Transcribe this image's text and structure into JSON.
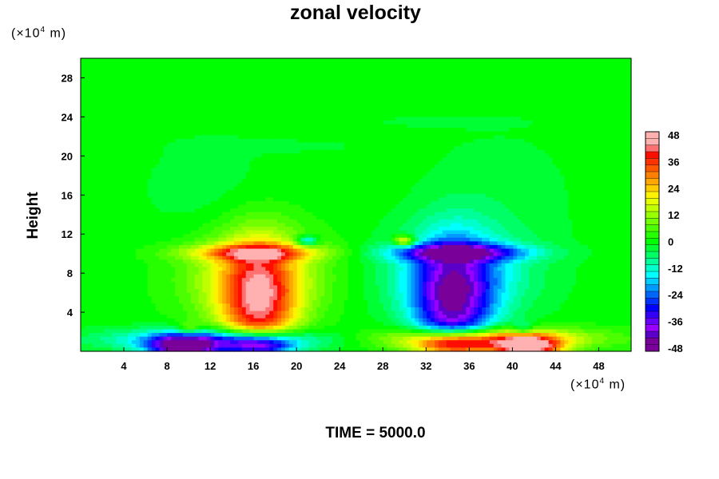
{
  "chart_data": {
    "type": "heatmap",
    "title": "zonal velocity",
    "ylabel": "Height",
    "x_unit": "(×10",
    "x_unit_exp": "4",
    "x_unit_suffix": " m)",
    "y_unit": "(×10",
    "y_unit_exp": "4",
    "y_unit_suffix": " m)",
    "xlim": [
      0,
      51
    ],
    "ylim": [
      0,
      30
    ],
    "x_ticks": [
      4,
      8,
      12,
      16,
      20,
      24,
      28,
      32,
      36,
      40,
      44,
      48
    ],
    "y_ticks": [
      4,
      8,
      12,
      16,
      20,
      24,
      28
    ],
    "colorbar": {
      "min": -48,
      "max": 48,
      "step": 3,
      "ticks": [
        -48,
        -36,
        -24,
        -12,
        0,
        12,
        24,
        36,
        48
      ]
    },
    "features": [
      {
        "x": 16.5,
        "y": 4.5,
        "value": 36,
        "sx": 2.6,
        "sy": 4.8
      },
      {
        "x": 16.0,
        "y": 7.8,
        "value": 16,
        "sx": 4.8,
        "sy": 3.2
      },
      {
        "x": 34.5,
        "y": 4.5,
        "value": -36,
        "sx": 2.6,
        "sy": 4.8
      },
      {
        "x": 35.0,
        "y": 7.8,
        "value": -16,
        "sx": 4.8,
        "sy": 3.2
      },
      {
        "x": 16.0,
        "y": 10.1,
        "value": 24,
        "sx": 4.5,
        "sy": 0.6
      },
      {
        "x": 35.0,
        "y": 10.1,
        "value": -30,
        "sx": 4.5,
        "sy": 0.6
      },
      {
        "x": 21.0,
        "y": 11.3,
        "value": -22,
        "sx": 0.7,
        "sy": 0.4
      },
      {
        "x": 30.0,
        "y": 11.3,
        "value": 26,
        "sx": 0.7,
        "sy": 0.4
      },
      {
        "x": 9.5,
        "y": 0.4,
        "value": -44,
        "sx": 2.2,
        "sy": 0.8
      },
      {
        "x": 16.5,
        "y": 0.4,
        "value": -50,
        "sx": 2.4,
        "sy": 0.9
      },
      {
        "x": 13.0,
        "y": 1.2,
        "value": -26,
        "sx": 7.0,
        "sy": 0.8
      },
      {
        "x": 34.5,
        "y": 0.5,
        "value": 50,
        "sx": 2.6,
        "sy": 0.9
      },
      {
        "x": 41.5,
        "y": 0.4,
        "value": 44,
        "sx": 2.2,
        "sy": 0.8
      },
      {
        "x": 37.5,
        "y": 1.3,
        "value": 28,
        "sx": 7.0,
        "sy": 0.8
      },
      {
        "x": 10.0,
        "y": 2.3,
        "value": 12,
        "sx": 0.7,
        "sy": 0.5
      },
      {
        "x": 41.0,
        "y": 2.3,
        "value": -12,
        "sx": 0.7,
        "sy": 0.5
      },
      {
        "x": 12.0,
        "y": 16.0,
        "value": -3,
        "sx": 5.0,
        "sy": 5.0
      },
      {
        "x": 39.0,
        "y": 16.0,
        "value": -3,
        "sx": 5.0,
        "sy": 5.0
      },
      {
        "x": 20.0,
        "y": 21.0,
        "value": -2,
        "sx": 6.0,
        "sy": 0.5
      },
      {
        "x": 33.0,
        "y": 23.5,
        "value": -2,
        "sx": 6.0,
        "sy": 0.5
      }
    ]
  },
  "footer": {
    "time_label": "TIME = 5000.0"
  },
  "colors": {
    "background": "#ffffff",
    "zero_level": "#00ff00",
    "min_level": "#7a009a",
    "max_level": "#ffb0b0"
  }
}
